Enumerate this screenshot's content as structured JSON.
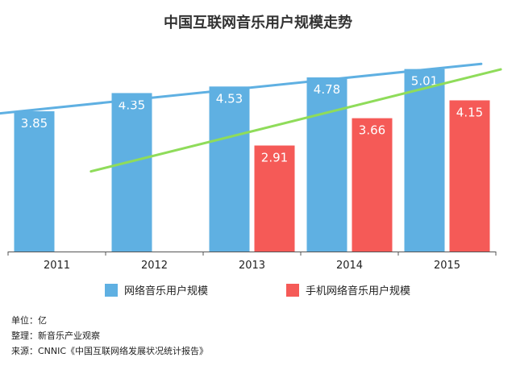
{
  "chart_data": {
    "type": "bar",
    "title": "中国互联网音乐用户规模走势",
    "categories": [
      "2011",
      "2012",
      "2013",
      "2014",
      "2015"
    ],
    "series": [
      {
        "name": "网络音乐用户规模",
        "values": [
          3.85,
          4.35,
          4.53,
          4.78,
          5.01
        ],
        "color": "#5fb0e2"
      },
      {
        "name": "手机网络音乐用户规模",
        "values": [
          null,
          null,
          2.91,
          3.66,
          4.15
        ],
        "color": "#f55a57"
      }
    ],
    "trendlines": [
      {
        "series": "网络音乐用户规模",
        "color": "#5fb0e2"
      },
      {
        "series": "手机网络音乐用户规模",
        "color": "#8fdc5a"
      }
    ],
    "ylim": [
      0,
      5.4
    ],
    "legend_position": "bottom",
    "grid": false
  },
  "footer": {
    "unit": "单位：亿",
    "arrange": "整理：新音乐产业观察",
    "source": "来源：CNNIC《中国互联网络发展状况统计报告》"
  }
}
